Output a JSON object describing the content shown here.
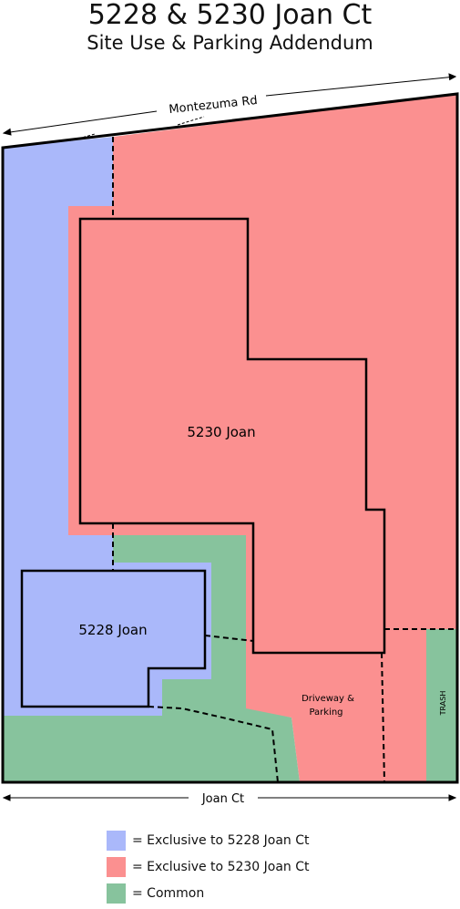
{
  "header": {
    "title": "5228 & 5230 Joan Ct",
    "subtitle": "Site Use & Parking Addendum"
  },
  "labels": {
    "north_road": "Montezuma Rd",
    "south_road": "Joan Ct",
    "building_5230": "5230 Joan",
    "building_5228": "5228 Joan",
    "driveway_line1": "Driveway &",
    "driveway_line2": "Parking",
    "trash": "TRASH"
  },
  "colors": {
    "exclusive_5228": "#aab8fa",
    "exclusive_5230": "#fb9090",
    "common": "#87c39d",
    "outline": "#000000"
  },
  "legend": [
    {
      "color_key": "exclusive_5228",
      "label": "= Exclusive to 5228 Joan Ct"
    },
    {
      "color_key": "exclusive_5230",
      "label": "= Exclusive to 5230 Joan Ct"
    },
    {
      "color_key": "common",
      "label": "= Common"
    }
  ]
}
